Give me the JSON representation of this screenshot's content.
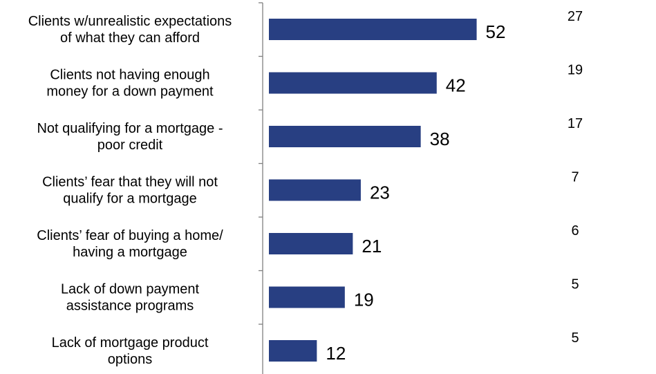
{
  "colors": {
    "bar": "#283F82",
    "axis": "#7f7f7f",
    "text": "#000000"
  },
  "chart_data": {
    "type": "bar",
    "orientation": "horizontal",
    "title": "",
    "xlabel": "",
    "ylabel": "",
    "grid": false,
    "legend": "none",
    "categories": [
      [
        "Clients w/unrealistic expectations",
        "of what they can afford"
      ],
      [
        "Clients not having enough",
        "money for a down payment"
      ],
      [
        "Not qualifying for a mortgage -",
        "poor credit"
      ],
      [
        "Clients’ fear that they will not",
        "qualify for a mortgage"
      ],
      [
        "Clients’ fear of buying a home/",
        "having a mortgage"
      ],
      [
        "Lack of down payment",
        "assistance programs"
      ],
      [
        "Lack of mortgage product",
        "options"
      ]
    ],
    "values": [
      52,
      42,
      38,
      23,
      21,
      19,
      12
    ],
    "value_labels": [
      "52",
      "42",
      "38",
      "23",
      "21",
      "19",
      "12"
    ],
    "second_column_values": [
      "27",
      "19",
      "17",
      "7",
      "6",
      "5",
      "5"
    ]
  }
}
